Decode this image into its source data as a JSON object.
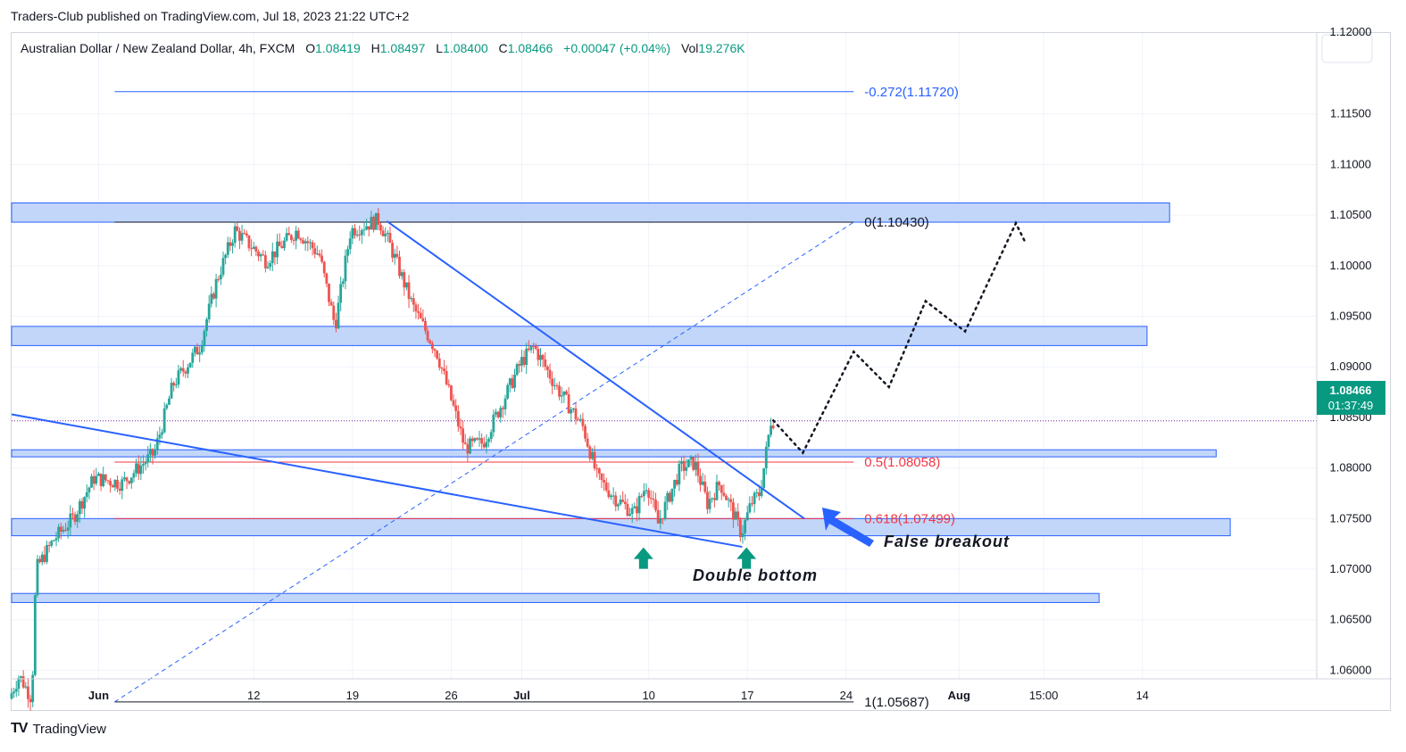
{
  "header": {
    "published": "Traders-Club published on TradingView.com, Jul 18, 2023 21:22 UTC+2"
  },
  "legend": {
    "symbol": "Australian Dollar / New Zealand Dollar, 4h, FXCM",
    "o_label": "O",
    "o_value": "1.08419",
    "h_label": "H",
    "h_value": "1.08497",
    "l_label": "L",
    "l_value": "1.08400",
    "c_label": "C",
    "c_value": "1.08466",
    "change": "+0.00047 (+0.04%)",
    "vol_label": "Vol",
    "vol_value": "19.276K"
  },
  "footer": {
    "brand": "TradingView",
    "logo": "TV"
  },
  "colors": {
    "up": "#26a69a",
    "down": "#ef5350",
    "zone_fill": "#bbd2f8",
    "zone_border": "#2962ff",
    "trend": "#2962ff",
    "fib_red": "#f23645",
    "fib_blue": "#2962ff",
    "grid": "#f0f3fa"
  },
  "chart_data": {
    "type": "candlestick",
    "title": "Australian Dollar / New Zealand Dollar, 4h, FXCM",
    "y_axis": {
      "ylim": [
        1.0553,
        1.123
      ],
      "ticks": [
        1.06,
        1.065,
        1.07,
        1.075,
        1.08,
        1.085,
        1.09,
        1.095,
        1.1,
        1.105,
        1.11,
        1.115
      ],
      "tick_labels": [
        "1.06000",
        "1.06500",
        "1.07000",
        "1.07500",
        "1.08000",
        "1.08500",
        "1.09000",
        "1.09500",
        "1.10000",
        "1.10500",
        "1.11000",
        "1.11500"
      ],
      "top_cut_label": "1.12000"
    },
    "x_axis": {
      "time_range": [
        "May 26",
        "Aug 18"
      ],
      "tick_labels": [
        "Jun",
        "12",
        "19",
        "26",
        "Jul",
        "10",
        "17",
        "24",
        "Aug",
        "15:00",
        "14"
      ],
      "tick_days": [
        6.17,
        17.17,
        24.17,
        31.17,
        36.17,
        45.17,
        52.17,
        59.17,
        67.17,
        73.17,
        80.17
      ]
    },
    "last_price": {
      "value": 1.08466,
      "label": "1.08466",
      "countdown": "01:37:49"
    },
    "price_path": [
      {
        "day": 0.0,
        "price": 1.0572
      },
      {
        "day": 0.7,
        "price": 1.0595
      },
      {
        "day": 1.6,
        "price": 1.0572
      },
      {
        "day": 1.9,
        "price": 1.07
      },
      {
        "day": 3.2,
        "price": 1.073
      },
      {
        "day": 4.5,
        "price": 1.075
      },
      {
        "day": 6.0,
        "price": 1.079
      },
      {
        "day": 8.0,
        "price": 1.0785
      },
      {
        "day": 10.3,
        "price": 1.0815
      },
      {
        "day": 11.6,
        "price": 1.0882
      },
      {
        "day": 13.5,
        "price": 1.092
      },
      {
        "day": 14.7,
        "price": 1.0985
      },
      {
        "day": 16.0,
        "price": 1.1035
      },
      {
        "day": 18.2,
        "price": 1.1005
      },
      {
        "day": 20.4,
        "price": 1.1035
      },
      {
        "day": 22.0,
        "price": 1.101
      },
      {
        "day": 23.1,
        "price": 1.094
      },
      {
        "day": 24.2,
        "price": 1.1035
      },
      {
        "day": 26.2,
        "price": 1.1045
      },
      {
        "day": 27.0,
        "price": 1.102
      },
      {
        "day": 28.6,
        "price": 1.096
      },
      {
        "day": 30.3,
        "price": 1.0915
      },
      {
        "day": 31.6,
        "price": 1.0855
      },
      {
        "day": 32.3,
        "price": 1.082
      },
      {
        "day": 33.6,
        "price": 1.0825
      },
      {
        "day": 34.8,
        "price": 1.086
      },
      {
        "day": 36.3,
        "price": 1.0905
      },
      {
        "day": 37.2,
        "price": 1.092
      },
      {
        "day": 38.8,
        "price": 1.088
      },
      {
        "day": 40.7,
        "price": 1.084
      },
      {
        "day": 41.7,
        "price": 1.079
      },
      {
        "day": 43.0,
        "price": 1.077
      },
      {
        "day": 44.3,
        "price": 1.0755
      },
      {
        "day": 45.2,
        "price": 1.0785
      },
      {
        "day": 46.0,
        "price": 1.0745
      },
      {
        "day": 47.6,
        "price": 1.08
      },
      {
        "day": 48.6,
        "price": 1.0805
      },
      {
        "day": 49.5,
        "price": 1.0765
      },
      {
        "day": 50.4,
        "price": 1.0785
      },
      {
        "day": 51.2,
        "price": 1.076
      },
      {
        "day": 51.9,
        "price": 1.0735
      },
      {
        "day": 52.6,
        "price": 1.0765
      },
      {
        "day": 53.2,
        "price": 1.0775
      },
      {
        "day": 53.5,
        "price": 1.08
      },
      {
        "day": 54.0,
        "price": 1.0847
      }
    ],
    "zones": [
      {
        "name": "zone-1.1050",
        "low": 1.1043,
        "high": 1.1062,
        "end_day": 82.1
      },
      {
        "name": "zone-1.0930",
        "low": 1.0921,
        "high": 1.094,
        "end_day": 80.5
      },
      {
        "name": "zone-1.0815",
        "low": 1.0811,
        "high": 1.0818,
        "end_day": 85.4
      },
      {
        "name": "zone-1.0742",
        "low": 1.0733,
        "high": 1.075,
        "end_day": 86.4
      },
      {
        "name": "zone-1.0672",
        "low": 1.0667,
        "high": 1.0676,
        "end_day": 77.1
      }
    ],
    "fibonacci": {
      "start_day": 7.3,
      "end_day": 59.7,
      "levels": [
        {
          "ratio": "-0.272",
          "price": 1.1172,
          "label": "-0.272(1.11720)",
          "color": "#2962ff"
        },
        {
          "ratio": "0",
          "price": 1.1043,
          "label": "0(1.10430)",
          "color": "#131722"
        },
        {
          "ratio": "0.5",
          "price": 1.08058,
          "label": "0.5(1.08058)",
          "color": "#f23645"
        },
        {
          "ratio": "0.618",
          "price": 1.07499,
          "label": "0.618(1.07499)",
          "color": "#f23645"
        },
        {
          "ratio": "1",
          "price": 1.05687,
          "label": "1(1.05687)",
          "color": "#131722"
        }
      ],
      "diagonal": [
        {
          "day": 7.3,
          "price": 1.05687
        },
        {
          "day": 59.7,
          "price": 1.1043
        }
      ]
    },
    "trendlines": [
      {
        "name": "descending-trendline",
        "from": {
          "day": 26.6,
          "price": 1.1044
        },
        "to": {
          "day": 56.2,
          "price": 1.075
        }
      },
      {
        "name": "wedge-lower-trendline",
        "from": {
          "day": 0.0,
          "price": 1.0853
        },
        "to": {
          "day": 51.8,
          "price": 1.0722
        }
      }
    ],
    "projection": [
      {
        "day": 54.0,
        "price": 1.0847
      },
      {
        "day": 56.1,
        "price": 1.0815
      },
      {
        "day": 59.7,
        "price": 1.0915
      },
      {
        "day": 62.2,
        "price": 1.088
      },
      {
        "day": 64.8,
        "price": 1.0965
      },
      {
        "day": 67.6,
        "price": 1.0935
      },
      {
        "day": 71.2,
        "price": 1.1042
      },
      {
        "day": 71.8,
        "price": 1.1025
      }
    ],
    "current_price_line": 1.08466,
    "annotations": [
      {
        "name": "double-bottom-label",
        "text": "Double bottom"
      },
      {
        "name": "false-breakout-label",
        "text": "False breakout"
      }
    ],
    "markers": [
      {
        "name": "double-bottom-arrow-1",
        "day": 44.8,
        "price": 1.071
      },
      {
        "name": "double-bottom-arrow-2",
        "day": 52.1,
        "price": 1.071
      }
    ]
  }
}
